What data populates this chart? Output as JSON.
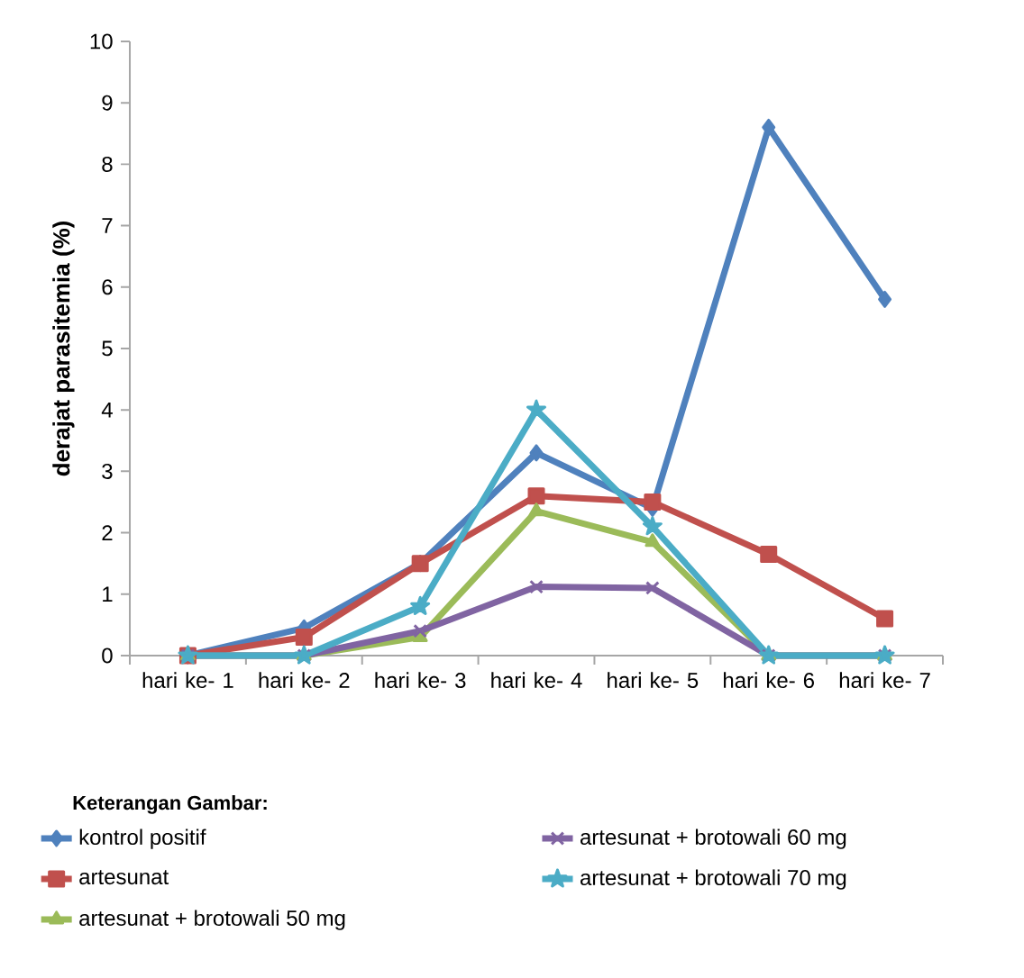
{
  "chart_data": {
    "type": "line",
    "ylabel": "derajat parasitemia (%)",
    "legend_title": "Keterangan Gambar:",
    "categories": [
      "hari ke- 1",
      "hari ke- 2",
      "hari ke- 3",
      "hari ke- 4",
      "hari ke- 5",
      "hari ke- 6",
      "hari ke- 7"
    ],
    "ylim": [
      0,
      10
    ],
    "yticks": [
      0,
      1,
      2,
      3,
      4,
      5,
      6,
      7,
      8,
      9,
      10
    ],
    "grid": false,
    "legend": "bottom",
    "series": [
      {
        "name": "kontrol positif",
        "color": "#4f81bd",
        "marker": "diamond",
        "values": [
          0,
          0.45,
          1.5,
          3.3,
          2.4,
          8.6,
          5.8
        ]
      },
      {
        "name": "artesunat",
        "color": "#c0504d",
        "marker": "square",
        "values": [
          0,
          0.3,
          1.5,
          2.6,
          2.5,
          1.65,
          0.6
        ]
      },
      {
        "name": "artesunat + brotowali 50 mg",
        "color": "#9bbb59",
        "marker": "triangle",
        "values": [
          0,
          0,
          0.3,
          2.35,
          1.85,
          0,
          0
        ]
      },
      {
        "name": "artesunat + brotowali 60 mg",
        "color": "#8064a2",
        "marker": "cross",
        "values": [
          0,
          0,
          0.4,
          1.12,
          1.1,
          0,
          0
        ]
      },
      {
        "name": "artesunat + brotowali 70 mg",
        "color": "#4bacc6",
        "marker": "star",
        "values": [
          0,
          0,
          0.8,
          4.0,
          2.1,
          0,
          0
        ]
      }
    ]
  }
}
